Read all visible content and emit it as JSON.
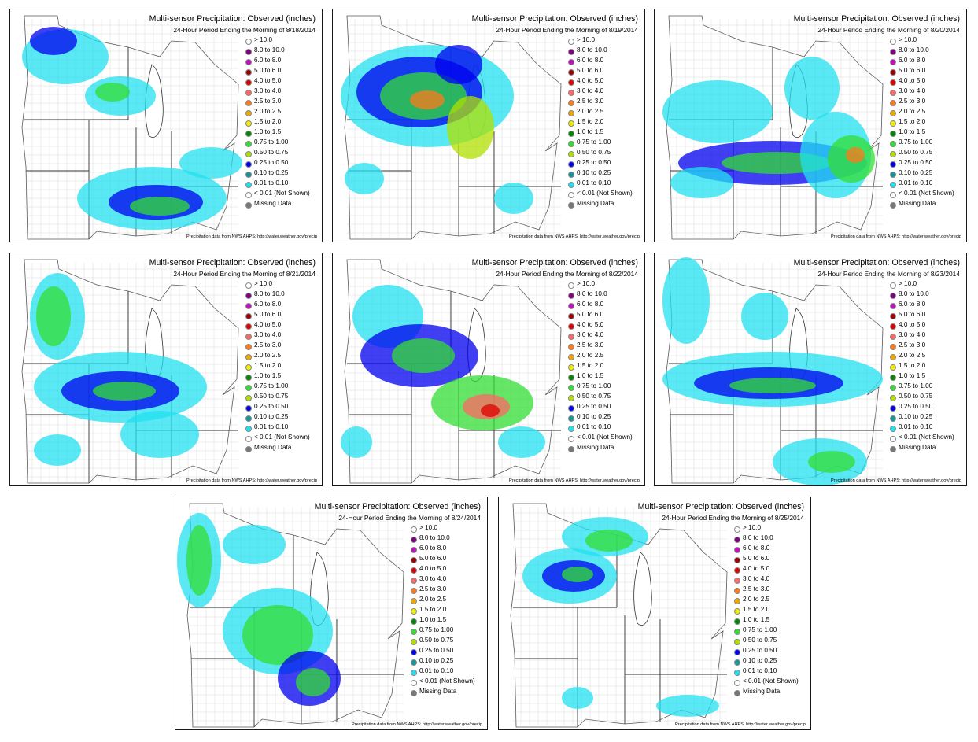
{
  "title": "Multi-sensor Precipitation:  Observed (inches)",
  "subtitle_prefix": "24-Hour Period Ending the Morning of ",
  "credit": "Precipitation data from NWS AHPS: http://water.weather.gov/precip",
  "legend": [
    {
      "label": "> 10.0",
      "color": "#ffffff"
    },
    {
      "label": "8.0 to 10.0",
      "color": "#7f007f"
    },
    {
      "label": "6.0 to 8.0",
      "color": "#c010c0"
    },
    {
      "label": "5.0 to 6.0",
      "color": "#a00000"
    },
    {
      "label": "4.0 to 5.0",
      "color": "#e00000"
    },
    {
      "label": "3.0 to 4.0",
      "color": "#ff6666"
    },
    {
      "label": "2.5 to 3.0",
      "color": "#ff7a1a"
    },
    {
      "label": "2.0 to 2.5",
      "color": "#f0a800"
    },
    {
      "label": "1.5 to 2.0",
      "color": "#f0f000"
    },
    {
      "label": "1.0 to 1.5",
      "color": "#008800"
    },
    {
      "label": "0.75 to 1.00",
      "color": "#33dd33"
    },
    {
      "label": "0.50 to 0.75",
      "color": "#b0e000"
    },
    {
      "label": "0.25 to 0.50",
      "color": "#0000ee"
    },
    {
      "label": "0.10 to 0.25",
      "color": "#119999"
    },
    {
      "label": "0.01 to 0.10",
      "color": "#22e0f0"
    },
    {
      "label": "< 0.01 (Not Shown)",
      "color": "#ffffff"
    },
    {
      "label": "Missing Data",
      "color": "#777777"
    }
  ],
  "panels": [
    {
      "date": "8/18/2014"
    },
    {
      "date": "8/19/2014"
    },
    {
      "date": "8/20/2014"
    },
    {
      "date": "8/21/2014"
    },
    {
      "date": "8/22/2014"
    },
    {
      "date": "8/23/2014"
    },
    {
      "date": "8/24/2014"
    },
    {
      "date": "8/25/2014"
    }
  ]
}
